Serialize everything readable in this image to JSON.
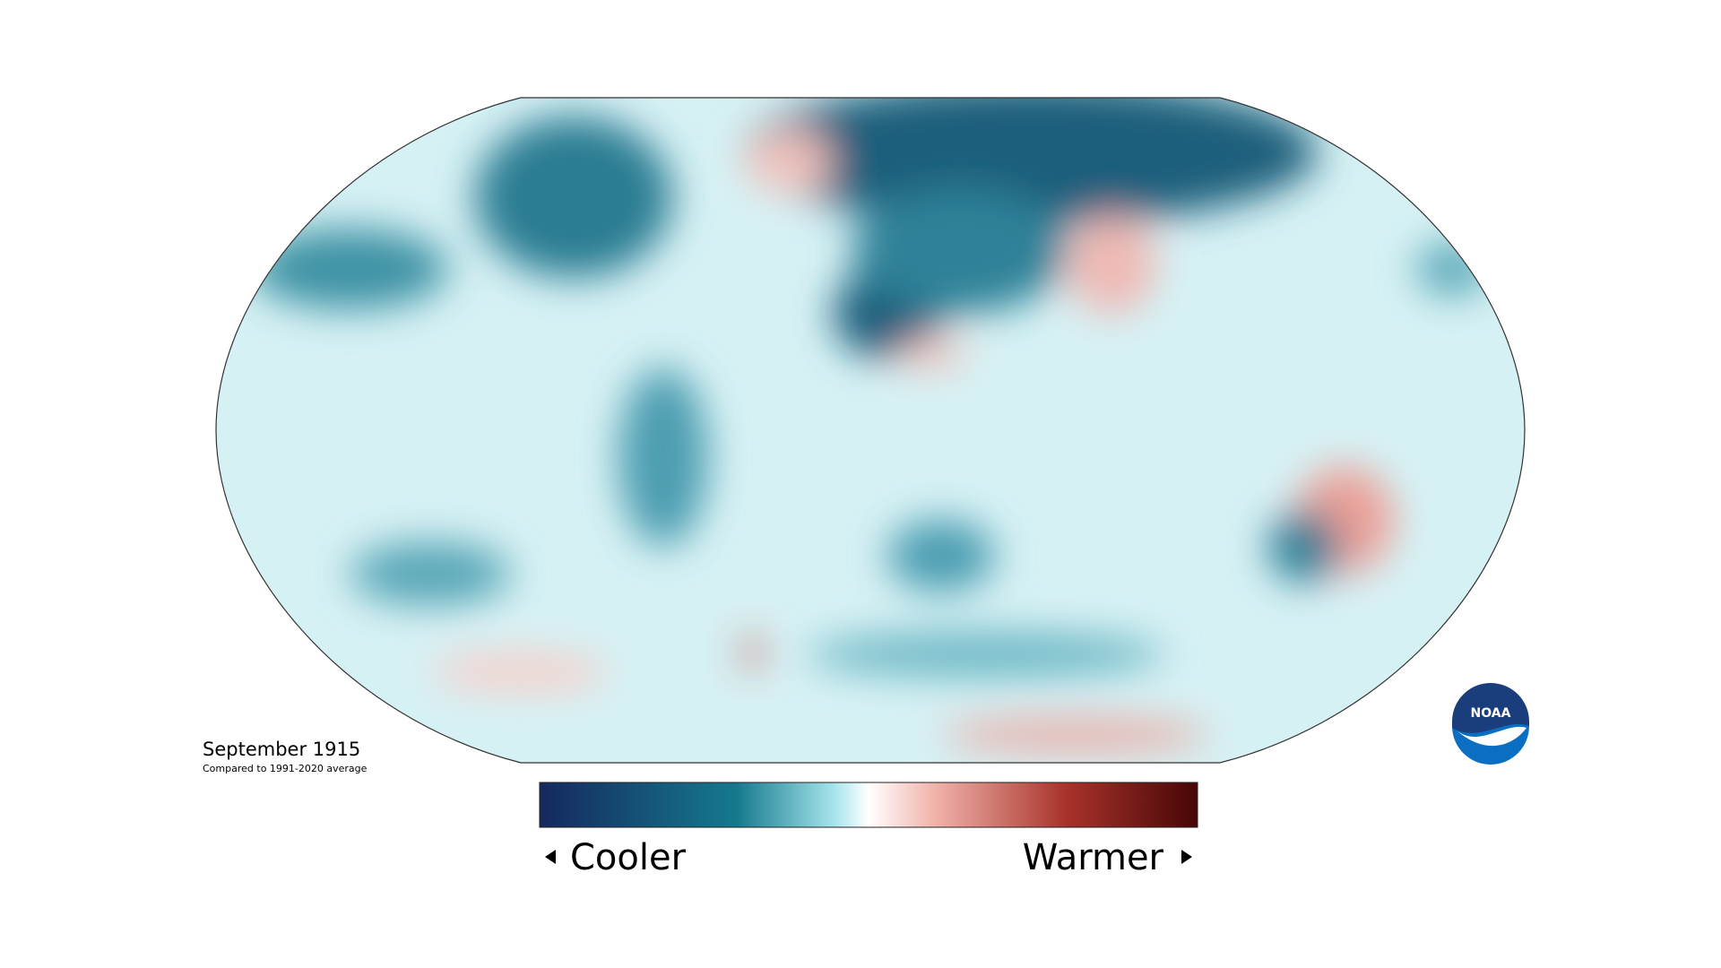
{
  "map": {
    "title": "September 1915",
    "subtitle": "Compared to 1991-2020 average"
  },
  "legend": {
    "low_label": "Cooler",
    "high_label": "Warmer"
  },
  "logo": {
    "text": "NOAA"
  }
}
